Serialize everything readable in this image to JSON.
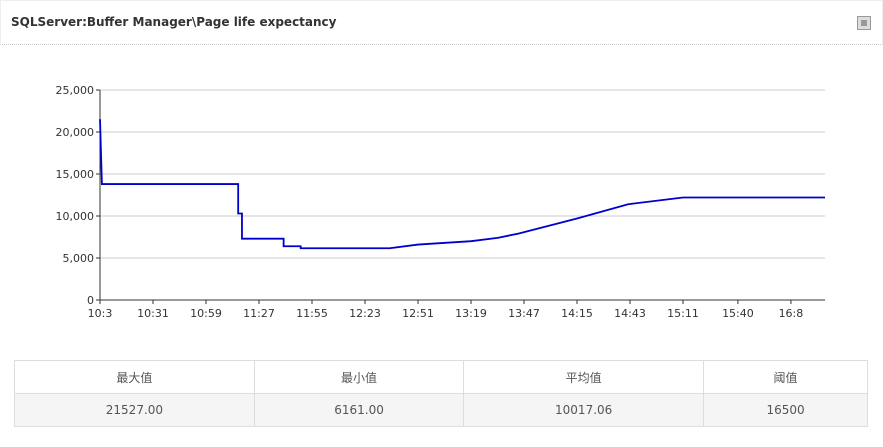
{
  "header": {
    "title": "SQLServer:Buffer Manager\\Page life expectancy"
  },
  "chart_data": {
    "type": "line",
    "x": [
      "10:03",
      "10:04",
      "11:16",
      "11:16",
      "11:18",
      "11:18",
      "11:40",
      "11:40",
      "11:49",
      "11:49",
      "12:36",
      "12:51",
      "13:19",
      "13:33",
      "13:44",
      "14:15",
      "14:42",
      "15:11",
      "16:26"
    ],
    "series": [
      {
        "name": "Page life expectancy",
        "color": "#0000cc",
        "values": [
          21527,
          13800,
          13800,
          10300,
          10300,
          7300,
          7300,
          6400,
          6400,
          6161,
          6161,
          6600,
          7000,
          7400,
          7900,
          9700,
          11400,
          12200,
          12200
        ]
      }
    ],
    "xlim": [
      "10:03",
      "16:26"
    ],
    "xticks": [
      {
        "value": "10:03",
        "label": "10:3"
      },
      "10:31",
      "10:59",
      "11:27",
      "11:55",
      "12:23",
      "12:51",
      "13:19",
      "13:47",
      "14:15",
      "14:43",
      "15:11",
      "15:40",
      {
        "value": "16:08",
        "label": "16:8"
      }
    ],
    "ylim": [
      0,
      25000
    ],
    "yticks": [
      0,
      {
        "value": 5000,
        "label": "5,000"
      },
      {
        "value": 10000,
        "label": "10,000"
      },
      {
        "value": 15000,
        "label": "15,000"
      },
      {
        "value": 20000,
        "label": "20,000"
      },
      {
        "value": 25000,
        "label": "25,000"
      }
    ],
    "grid": true
  },
  "table": {
    "header": [
      "最大值",
      "最小值",
      "平均值",
      "阈值"
    ],
    "rows": [
      [
        "21527.00",
        "6161.00",
        "10017.06",
        "16500"
      ]
    ]
  }
}
